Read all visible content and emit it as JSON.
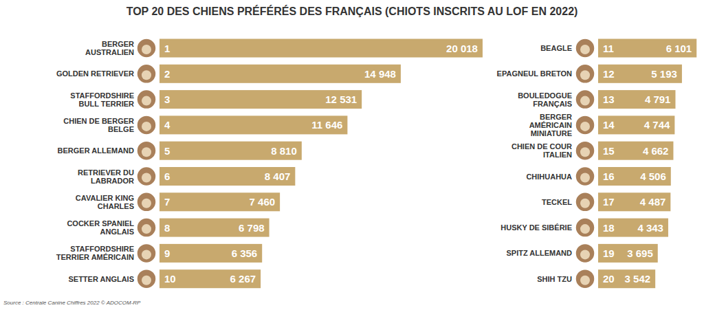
{
  "chart_data": {
    "type": "bar",
    "orientation": "horizontal",
    "title": "TOP 20 DES CHIENS PRÉFÉRÉS DES FRANÇAIS (CHIOTS INSCRITS AU LOF EN 2022)",
    "annotations": [
      "Source : Centrale Canine Chiffres 2022 © ADOCOM-RP"
    ],
    "categories": [
      "BERGER AUSTRALIEN",
      "GOLDEN RETRIEVER",
      "STAFFORDSHIRE BULL TERRIER",
      "CHIEN DE BERGER BELGE",
      "BERGER ALLEMAND",
      "RETRIEVER DU LABRADOR",
      "CAVALIER KING CHARLES",
      "COCKER SPANIEL ANGLAIS",
      "STAFFORDSHIRE TERRIER AMÉRICAIN",
      "SETTER ANGLAIS",
      "BEAGLE",
      "EPAGNEUL BRETON",
      "BOULEDOGUE FRANÇAIS",
      "BERGER AMÉRICAIN MINIATURE",
      "CHIEN DE COUR ITALIEN",
      "CHIHUAHUA",
      "TECKEL",
      "HUSKY DE SIBÉRIE",
      "SPITZ ALLEMAND",
      "SHIH TZU"
    ],
    "ranks": [
      1,
      2,
      3,
      4,
      5,
      6,
      7,
      8,
      9,
      10,
      11,
      12,
      13,
      14,
      15,
      16,
      17,
      18,
      19,
      20
    ],
    "values": [
      20018,
      14948,
      12531,
      11646,
      8810,
      8407,
      7460,
      6798,
      6356,
      6267,
      6101,
      5193,
      4791,
      4744,
      4662,
      4506,
      4487,
      4343,
      3695,
      3542
    ],
    "value_labels": [
      "20 018",
      "14 948",
      "12 531",
      "11 646",
      "8 810",
      "8 407",
      "7 460",
      "6 798",
      "6 356",
      "6 267",
      "6 101",
      "5 193",
      "4 791",
      "4 744",
      "4 662",
      "4 506",
      "4 487",
      "4 343",
      "3 695",
      "3 542"
    ],
    "color": "#c8a96e",
    "xlim": [
      0,
      21000
    ],
    "grid": false,
    "data_labels": true,
    "tick_labels": false
  }
}
